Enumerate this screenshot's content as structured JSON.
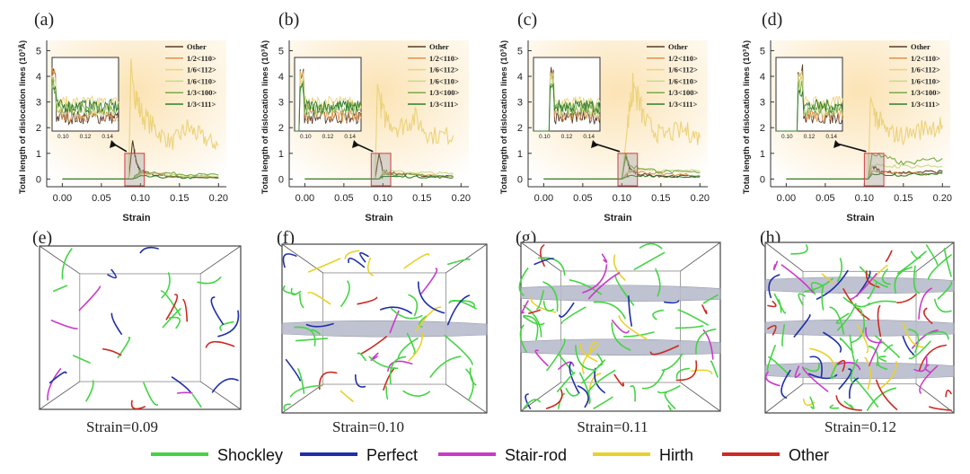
{
  "figure_labels": {
    "a": "(a)",
    "b": "(b)",
    "c": "(c)",
    "d": "(d)",
    "e": "(e)",
    "f": "(f)",
    "g": "(g)",
    "h": "(h)"
  },
  "legend_entries": [
    "Other",
    "1/2<110>",
    "1/6<112>",
    "1/6<110>",
    "1/3<100>",
    "1/3<111>"
  ],
  "series_colors": [
    "#5a3d2b",
    "#e0914a",
    "#ecd27a",
    "#c8d98a",
    "#7aab48",
    "#2f7d2f"
  ],
  "ylabel": "Total length of dislocation lines (10³Å)",
  "xlabel": "Strain",
  "main_x_ticks": [
    "0.00",
    "0.05",
    "0.10",
    "0.15",
    "0.20"
  ],
  "main_y_ticks": [
    "0",
    "1",
    "2",
    "3",
    "4",
    "5"
  ],
  "inset_x_ticks": [
    "0.10",
    "0.12",
    "0.14"
  ],
  "snapshots": {
    "e": "Strain=0.09",
    "f": "Strain=0.10",
    "g": "Strain=0.11",
    "h": "Strain=0.12"
  },
  "bottom_legend": {
    "items": [
      {
        "label": "Shockley",
        "color": "#44d444"
      },
      {
        "label": "Perfect",
        "color": "#1f2fa8"
      },
      {
        "label": "Stair-rod",
        "color": "#c93ac9"
      },
      {
        "label": "Hirth",
        "color": "#e8d22a"
      },
      {
        "label": "Other",
        "color": "#cc2a22"
      }
    ]
  },
  "chart_data": [
    {
      "panel": "a",
      "type": "line",
      "xlim": [
        -0.02,
        0.21
      ],
      "ylim": [
        -0.3,
        5.4
      ],
      "yield_strain": 0.09,
      "series": [
        {
          "name": "Other",
          "x": [
            0.0,
            0.085,
            0.09,
            0.095,
            0.1,
            0.12,
            0.15,
            0.2
          ],
          "values": [
            0,
            0,
            1.5,
            0.6,
            0.3,
            0.15,
            0.1,
            0.05
          ]
        },
        {
          "name": "1/2<110>",
          "x": [
            0.0,
            0.09,
            0.1,
            0.15,
            0.2
          ],
          "values": [
            0,
            0,
            0.25,
            0.1,
            0.08
          ]
        },
        {
          "name": "1/6<112>",
          "x": [
            0.0,
            0.085,
            0.088,
            0.09,
            0.1,
            0.12,
            0.14,
            0.16,
            0.18,
            0.2
          ],
          "values": [
            0,
            0,
            4.7,
            3.8,
            2.6,
            1.9,
            1.4,
            2.0,
            1.6,
            1.3
          ]
        },
        {
          "name": "1/6<110>",
          "x": [
            0.0,
            0.09,
            0.1,
            0.15,
            0.2
          ],
          "values": [
            0,
            0,
            0.2,
            0.15,
            0.1
          ]
        },
        {
          "name": "1/3<100>",
          "x": [
            0.0,
            0.09,
            0.1,
            0.15,
            0.2
          ],
          "values": [
            0,
            0,
            0.3,
            0.2,
            0.15
          ]
        },
        {
          "name": "1/3<111>",
          "x": [
            0.0,
            0.09,
            0.1,
            0.15,
            0.2
          ],
          "values": [
            0,
            0,
            0.1,
            0.05,
            0.04
          ]
        }
      ]
    },
    {
      "panel": "b",
      "type": "line",
      "xlim": [
        -0.02,
        0.21
      ],
      "ylim": [
        -0.3,
        5.4
      ],
      "yield_strain": 0.095,
      "series": [
        {
          "name": "Other",
          "x": [
            0.0,
            0.09,
            0.095,
            0.1,
            0.12,
            0.15,
            0.19
          ],
          "values": [
            0,
            0,
            1.0,
            0.3,
            0.2,
            0.15,
            0.1
          ]
        },
        {
          "name": "1/2<110>",
          "x": [
            0.0,
            0.095,
            0.1,
            0.15,
            0.19
          ],
          "values": [
            0,
            0,
            0.2,
            0.15,
            0.1
          ]
        },
        {
          "name": "1/6<112>",
          "x": [
            0.0,
            0.09,
            0.093,
            0.1,
            0.12,
            0.14,
            0.16,
            0.19
          ],
          "values": [
            0,
            0,
            3.7,
            2.5,
            2.0,
            2.4,
            1.7,
            1.7
          ]
        },
        {
          "name": "1/6<110>",
          "x": [
            0.0,
            0.095,
            0.1,
            0.15,
            0.19
          ],
          "values": [
            0,
            0,
            0.3,
            0.25,
            0.2
          ]
        },
        {
          "name": "1/3<100>",
          "x": [
            0.0,
            0.095,
            0.1,
            0.15,
            0.19
          ],
          "values": [
            0,
            0,
            0.2,
            0.15,
            0.1
          ]
        },
        {
          "name": "1/3<111>",
          "x": [
            0.0,
            0.095,
            0.1,
            0.15,
            0.19
          ],
          "values": [
            0,
            0,
            0.1,
            0.08,
            0.06
          ]
        }
      ]
    },
    {
      "panel": "c",
      "type": "line",
      "xlim": [
        -0.02,
        0.21
      ],
      "ylim": [
        -0.3,
        5.4
      ],
      "yield_strain": 0.105,
      "series": [
        {
          "name": "Other",
          "x": [
            0.0,
            0.1,
            0.105,
            0.11,
            0.12,
            0.15,
            0.2
          ],
          "values": [
            0,
            0,
            0.9,
            0.4,
            0.2,
            0.12,
            0.1
          ]
        },
        {
          "name": "1/2<110>",
          "x": [
            0.0,
            0.1,
            0.11,
            0.15,
            0.2
          ],
          "values": [
            0,
            0,
            0.3,
            0.2,
            0.15
          ]
        },
        {
          "name": "1/6<112>",
          "x": [
            0.0,
            0.1,
            0.11,
            0.115,
            0.13,
            0.15,
            0.18,
            0.2
          ],
          "values": [
            0,
            0,
            2.8,
            3.6,
            2.2,
            1.7,
            1.9,
            1.6
          ]
        },
        {
          "name": "1/6<110>",
          "x": [
            0.0,
            0.1,
            0.11,
            0.15,
            0.2
          ],
          "values": [
            0,
            0,
            0.4,
            0.35,
            0.3
          ]
        },
        {
          "name": "1/3<100>",
          "x": [
            0.0,
            0.1,
            0.105,
            0.11,
            0.15,
            0.2
          ],
          "values": [
            0,
            0,
            1.0,
            0.5,
            0.3,
            0.25
          ]
        },
        {
          "name": "1/3<111>",
          "x": [
            0.0,
            0.1,
            0.11,
            0.15,
            0.2
          ],
          "values": [
            0,
            0,
            0.15,
            0.1,
            0.08
          ]
        }
      ]
    },
    {
      "panel": "d",
      "type": "line",
      "xlim": [
        -0.02,
        0.21
      ],
      "ylim": [
        -0.3,
        5.4
      ],
      "yield_strain": 0.11,
      "series": [
        {
          "name": "Other",
          "x": [
            0.0,
            0.105,
            0.11,
            0.12,
            0.15,
            0.2
          ],
          "values": [
            0,
            0,
            0.5,
            0.3,
            0.25,
            0.3
          ]
        },
        {
          "name": "1/2<110>",
          "x": [
            0.0,
            0.105,
            0.11,
            0.15,
            0.2
          ],
          "values": [
            0,
            0,
            0.3,
            0.2,
            0.2
          ]
        },
        {
          "name": "1/6<112>",
          "x": [
            0.0,
            0.105,
            0.108,
            0.115,
            0.13,
            0.15,
            0.18,
            0.2
          ],
          "values": [
            0,
            0,
            3.2,
            2.4,
            1.8,
            1.7,
            2.0,
            2.1
          ]
        },
        {
          "name": "1/6<110>",
          "x": [
            0.0,
            0.105,
            0.11,
            0.15,
            0.2
          ],
          "values": [
            0,
            0,
            0.5,
            0.5,
            0.5
          ]
        },
        {
          "name": "1/3<100>",
          "x": [
            0.0,
            0.105,
            0.11,
            0.15,
            0.2
          ],
          "values": [
            0,
            0,
            1.0,
            0.6,
            0.8
          ]
        },
        {
          "name": "1/3<111>",
          "x": [
            0.0,
            0.105,
            0.11,
            0.15,
            0.2
          ],
          "values": [
            0,
            0,
            0.2,
            0.15,
            0.25
          ]
        }
      ]
    }
  ]
}
